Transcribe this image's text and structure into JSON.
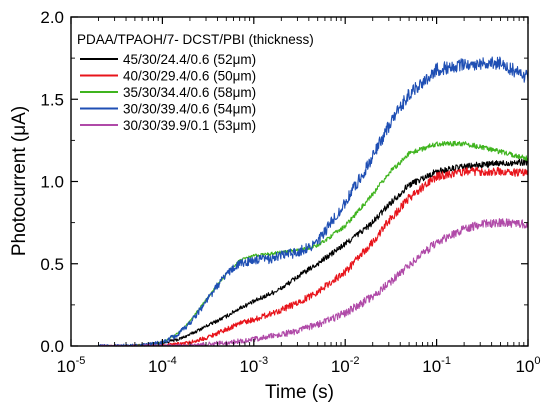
{
  "chart_data": {
    "type": "line",
    "title": "",
    "xlabel": "Time (s)",
    "ylabel": "Photocurrent (μA)",
    "xscale": "log",
    "xlim": [
      1e-05,
      1
    ],
    "ylim": [
      0.0,
      2.0
    ],
    "x_ticks": [
      {
        "value": 1e-05,
        "base": "10",
        "exp": "-5"
      },
      {
        "value": 0.0001,
        "base": "10",
        "exp": "-4"
      },
      {
        "value": 0.001,
        "base": "10",
        "exp": "-3"
      },
      {
        "value": 0.01,
        "base": "10",
        "exp": "-2"
      },
      {
        "value": 0.1,
        "base": "10",
        "exp": "-1"
      },
      {
        "value": 1,
        "base": "10",
        "exp": "0"
      }
    ],
    "y_ticks": [
      {
        "value": 0.0,
        "label": "0.0"
      },
      {
        "value": 0.5,
        "label": "0.5"
      },
      {
        "value": 1.0,
        "label": "1.0"
      },
      {
        "value": 1.5,
        "label": "1.5"
      },
      {
        "value": 2.0,
        "label": "2.0"
      }
    ],
    "grid": false,
    "legend": {
      "placement": "top-left",
      "title": "PDAA/TPAOH/7- DCST/PBI (thickness)"
    },
    "series": [
      {
        "name": "45/30/24.4/0.6 (52μm)",
        "color": "#000000",
        "noise": 0.02,
        "x": [
          2e-05,
          4e-05,
          7e-05,
          0.0001,
          0.00015,
          0.0002,
          0.0003,
          0.0005,
          0.0007,
          0.001,
          0.002,
          0.003,
          0.005,
          0.01,
          0.02,
          0.03,
          0.05,
          0.1,
          0.2,
          0.3,
          0.5,
          1
        ],
        "y": [
          0.0,
          0.0,
          0.01,
          0.02,
          0.04,
          0.07,
          0.12,
          0.18,
          0.23,
          0.27,
          0.35,
          0.42,
          0.5,
          0.62,
          0.75,
          0.86,
          0.98,
          1.06,
          1.09,
          1.1,
          1.11,
          1.12
        ]
      },
      {
        "name": "40/30/29.4/0.6 (50μm)",
        "color": "#e8141b",
        "noise": 0.025,
        "x": [
          2e-05,
          5e-05,
          0.0001,
          0.0002,
          0.0003,
          0.0005,
          0.0007,
          0.001,
          0.002,
          0.003,
          0.005,
          0.01,
          0.02,
          0.03,
          0.05,
          0.1,
          0.2,
          0.3,
          0.5,
          1
        ],
        "y": [
          0.0,
          0.0,
          0.0,
          0.02,
          0.05,
          0.1,
          0.14,
          0.16,
          0.22,
          0.26,
          0.33,
          0.45,
          0.63,
          0.76,
          0.9,
          1.03,
          1.06,
          1.06,
          1.06,
          1.05
        ]
      },
      {
        "name": "35/30/34.4/0.6 (58μm)",
        "color": "#3fb41e",
        "noise": 0.015,
        "x": [
          5e-05,
          0.0001,
          0.00015,
          0.0002,
          0.0003,
          0.0005,
          0.0007,
          0.001,
          0.0015,
          0.002,
          0.003,
          0.005,
          0.01,
          0.02,
          0.03,
          0.05,
          0.1,
          0.2,
          0.3,
          0.5,
          1
        ],
        "y": [
          0.0,
          0.02,
          0.08,
          0.15,
          0.28,
          0.44,
          0.52,
          0.55,
          0.56,
          0.57,
          0.58,
          0.61,
          0.73,
          0.92,
          1.05,
          1.17,
          1.23,
          1.23,
          1.21,
          1.18,
          1.14
        ]
      },
      {
        "name": "30/30/39.4/0.6 (54μm)",
        "color": "#1f4fb4",
        "noise": 0.04,
        "x": [
          2e-05,
          6e-05,
          0.0001,
          0.00015,
          0.0002,
          0.0003,
          0.0005,
          0.0007,
          0.001,
          0.0015,
          0.002,
          0.003,
          0.005,
          0.01,
          0.02,
          0.03,
          0.05,
          0.1,
          0.2,
          0.3,
          0.5,
          1
        ],
        "y": [
          0.0,
          0.0,
          0.02,
          0.07,
          0.14,
          0.27,
          0.44,
          0.5,
          0.52,
          0.53,
          0.55,
          0.57,
          0.63,
          0.87,
          1.15,
          1.34,
          1.53,
          1.68,
          1.71,
          1.72,
          1.72,
          1.63
        ]
      },
      {
        "name": "30/30/39.9/0.1 (53μm)",
        "color": "#b04aa8",
        "noise": 0.025,
        "x": [
          2e-05,
          5e-05,
          0.0001,
          0.0002,
          0.0003,
          0.0005,
          0.001,
          0.002,
          0.003,
          0.005,
          0.01,
          0.02,
          0.03,
          0.05,
          0.1,
          0.2,
          0.3,
          0.5,
          1
        ],
        "y": [
          0.0,
          0.0,
          0.0,
          0.0,
          0.01,
          0.02,
          0.04,
          0.07,
          0.09,
          0.13,
          0.2,
          0.3,
          0.38,
          0.49,
          0.63,
          0.71,
          0.74,
          0.75,
          0.74
        ]
      }
    ]
  }
}
